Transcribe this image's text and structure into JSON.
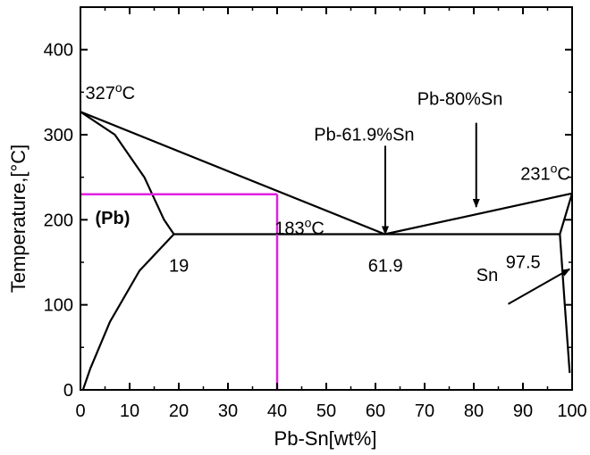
{
  "chart_data": {
    "type": "line",
    "title": "",
    "xlabel": "Pb-Sn[wt%]",
    "ylabel": "Temperature,[°C]",
    "xlim": [
      0,
      100
    ],
    "ylim": [
      0,
      450
    ],
    "x_ticks": [
      0,
      10,
      20,
      30,
      40,
      50,
      60,
      70,
      80,
      90,
      100
    ],
    "y_ticks": [
      0,
      100,
      200,
      300,
      400
    ],
    "grid": false,
    "series": [
      {
        "key": "liquidus",
        "color": "#000000",
        "x": [
          0,
          61.9,
          100
        ],
        "y": [
          327,
          183,
          231
        ]
      },
      {
        "key": "solidus_pb",
        "color": "#000000",
        "x": [
          0,
          7,
          13,
          17,
          19
        ],
        "y": [
          327,
          300,
          250,
          200,
          183
        ]
      },
      {
        "key": "solvus_pb",
        "color": "#000000",
        "x": [
          19,
          12,
          6,
          2,
          0.5
        ],
        "y": [
          183,
          140,
          80,
          25,
          0
        ]
      },
      {
        "key": "eutectic",
        "color": "#000000",
        "x": [
          19,
          97.5
        ],
        "y": [
          183,
          183
        ]
      },
      {
        "key": "solidus_sn",
        "color": "#000000",
        "x": [
          97.5,
          100
        ],
        "y": [
          183,
          231
        ]
      },
      {
        "key": "solvus_sn",
        "color": "#000000",
        "x": [
          97.5,
          98.5,
          99.5
        ],
        "y": [
          183,
          100,
          20
        ]
      },
      {
        "key": "guide_horizontal",
        "color": "#e020e0",
        "x": [
          0,
          40
        ],
        "y": [
          230,
          230
        ]
      },
      {
        "key": "guide_vertical",
        "color": "#e020e0",
        "x": [
          40,
          40
        ],
        "y": [
          230,
          0
        ]
      }
    ],
    "annotations": [
      {
        "key": "pb_melt",
        "text": "327°C",
        "x": 1,
        "y": 342
      },
      {
        "key": "sn_melt",
        "text": "231°C",
        "x": 89.5,
        "y": 247
      },
      {
        "key": "eutectic_temp",
        "text": "183°C",
        "x": 39.5,
        "y": 183
      },
      {
        "key": "pb_phase",
        "text": "(Pb)",
        "x": 3,
        "y": 195
      },
      {
        "key": "c19",
        "text": "19",
        "x": 18,
        "y": 139
      },
      {
        "key": "c619",
        "text": "61.9",
        "x": 58.5,
        "y": 139
      },
      {
        "key": "c975",
        "text": "97.5",
        "x": 86.5,
        "y": 143
      },
      {
        "key": "sn_phase",
        "text": "Sn",
        "x": 80.5,
        "y": 128
      },
      {
        "key": "eut_comp",
        "text": "Pb-61.9%Sn",
        "x": 47.5,
        "y": 293
      },
      {
        "key": "comp80",
        "text": "Pb-80%Sn",
        "x": 68.5,
        "y": 335
      }
    ],
    "arrows": [
      {
        "key": "arrow_eutectic",
        "from": [
          62,
          287
        ],
        "to": [
          62,
          183
        ]
      },
      {
        "key": "arrow_80",
        "from": [
          80.5,
          314
        ],
        "to": [
          80.5,
          215
        ]
      },
      {
        "key": "arrow_sn",
        "from": [
          87,
          101
        ],
        "to": [
          99.5,
          142
        ]
      }
    ]
  }
}
